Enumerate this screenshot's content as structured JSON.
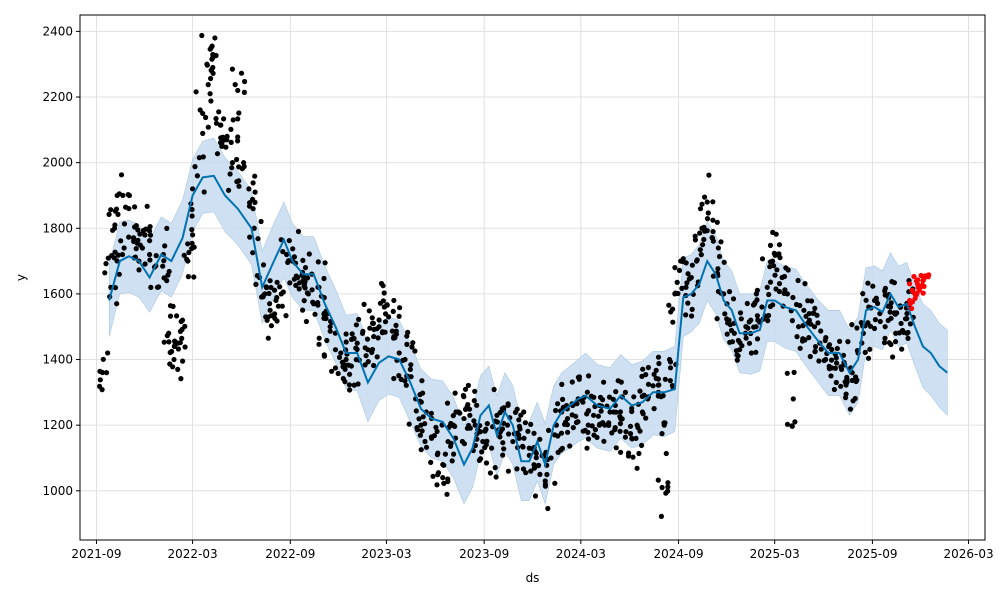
{
  "chart_data": {
    "type": "scatter",
    "title": "",
    "xlabel": "ds",
    "ylabel": "y",
    "grid": true,
    "xlim": [
      "2021-08-01",
      "2026-04-01"
    ],
    "ylim": [
      850,
      2450
    ],
    "x_ticks": [
      "2021-09",
      "2022-03",
      "2022-09",
      "2023-03",
      "2023-09",
      "2024-03",
      "2024-09",
      "2025-03",
      "2025-09",
      "2026-03"
    ],
    "y_ticks": [
      1000,
      1200,
      1400,
      1600,
      1800,
      2000,
      2200,
      2400
    ],
    "colors": {
      "observed": "#000000",
      "recent": "#ff0000",
      "forecast": "#0072b2",
      "uncertainty": "#c6dbef",
      "grid": "#e0e0e0"
    },
    "series": [
      {
        "role": "forecast",
        "x": [
          "2021-09-25",
          "2021-10-15",
          "2021-11-01",
          "2021-11-20",
          "2021-12-10",
          "2022-01-01",
          "2022-01-20",
          "2022-02-10",
          "2022-03-01",
          "2022-03-20",
          "2022-04-10",
          "2022-05-01",
          "2022-05-25",
          "2022-06-20",
          "2022-07-10",
          "2022-08-01",
          "2022-08-20",
          "2022-09-05",
          "2022-09-25",
          "2022-10-15",
          "2022-11-05",
          "2022-11-25",
          "2022-12-15",
          "2023-01-05",
          "2023-01-25",
          "2023-02-15",
          "2023-03-05",
          "2023-03-25",
          "2023-04-15",
          "2023-05-05",
          "2023-05-25",
          "2023-06-15",
          "2023-07-05",
          "2023-07-25",
          "2023-08-10",
          "2023-08-25",
          "2023-09-10",
          "2023-09-25",
          "2023-10-10",
          "2023-10-25",
          "2023-11-10",
          "2023-11-25",
          "2023-12-10",
          "2023-12-25",
          "2024-01-10",
          "2024-01-25",
          "2024-02-10",
          "2024-02-25",
          "2024-03-10",
          "2024-04-01",
          "2024-04-25",
          "2024-05-15",
          "2024-06-05",
          "2024-06-25",
          "2024-07-15",
          "2024-08-05",
          "2024-08-25",
          "2024-09-10",
          "2024-09-25",
          "2024-10-10",
          "2024-10-25",
          "2024-11-10",
          "2024-11-25",
          "2024-12-10",
          "2024-12-25",
          "2025-01-15",
          "2025-02-01",
          "2025-02-15",
          "2025-03-01",
          "2025-03-20",
          "2025-04-10",
          "2025-05-01",
          "2025-05-20",
          "2025-06-10",
          "2025-07-01",
          "2025-07-20",
          "2025-08-05",
          "2025-08-20",
          "2025-09-05",
          "2025-09-20",
          "2025-10-05",
          "2025-10-20",
          "2025-11-05",
          "2025-11-20",
          "2025-12-05",
          "2025-12-20",
          "2026-01-05",
          "2026-01-20"
        ],
        "y": [
          1580,
          1700,
          1715,
          1700,
          1650,
          1720,
          1700,
          1770,
          1900,
          1955,
          1960,
          1900,
          1860,
          1800,
          1620,
          1700,
          1765,
          1700,
          1660,
          1660,
          1570,
          1500,
          1420,
          1420,
          1330,
          1390,
          1410,
          1400,
          1330,
          1250,
          1220,
          1210,
          1160,
          1080,
          1130,
          1230,
          1260,
          1170,
          1240,
          1200,
          1090,
          1090,
          1150,
          1080,
          1200,
          1240,
          1260,
          1280,
          1290,
          1260,
          1250,
          1290,
          1260,
          1270,
          1300,
          1300,
          1310,
          1590,
          1600,
          1630,
          1700,
          1660,
          1580,
          1550,
          1480,
          1480,
          1490,
          1580,
          1580,
          1560,
          1550,
          1500,
          1460,
          1420,
          1420,
          1360,
          1400,
          1550,
          1560,
          1545,
          1600,
          1560,
          1570,
          1500,
          1440,
          1420,
          1380,
          1360
        ],
        "lower": [
          1470,
          1600,
          1605,
          1590,
          1545,
          1610,
          1590,
          1660,
          1790,
          1845,
          1850,
          1790,
          1750,
          1690,
          1510,
          1590,
          1650,
          1590,
          1550,
          1550,
          1460,
          1390,
          1310,
          1305,
          1210,
          1275,
          1295,
          1285,
          1210,
          1135,
          1100,
          1090,
          1040,
          960,
          1010,
          1110,
          1140,
          1045,
          1120,
          1080,
          970,
          970,
          1030,
          960,
          1080,
          1115,
          1130,
          1150,
          1160,
          1130,
          1120,
          1160,
          1130,
          1140,
          1170,
          1165,
          1180,
          1470,
          1485,
          1510,
          1580,
          1540,
          1460,
          1430,
          1360,
          1355,
          1365,
          1455,
          1455,
          1435,
          1425,
          1375,
          1335,
          1290,
          1290,
          1230,
          1270,
          1425,
          1440,
          1430,
          1490,
          1440,
          1450,
          1380,
          1315,
          1290,
          1255,
          1230
        ],
        "upper": [
          1690,
          1820,
          1825,
          1810,
          1765,
          1835,
          1815,
          1885,
          2010,
          2065,
          2075,
          2015,
          1975,
          1915,
          1730,
          1815,
          1880,
          1815,
          1775,
          1775,
          1685,
          1615,
          1535,
          1540,
          1450,
          1510,
          1530,
          1520,
          1450,
          1370,
          1340,
          1335,
          1285,
          1200,
          1250,
          1350,
          1380,
          1290,
          1360,
          1320,
          1210,
          1210,
          1270,
          1205,
          1320,
          1360,
          1380,
          1400,
          1420,
          1385,
          1375,
          1415,
          1385,
          1395,
          1425,
          1425,
          1440,
          1710,
          1720,
          1750,
          1820,
          1780,
          1700,
          1670,
          1600,
          1600,
          1610,
          1700,
          1700,
          1685,
          1675,
          1625,
          1585,
          1550,
          1550,
          1490,
          1530,
          1680,
          1685,
          1670,
          1725,
          1685,
          1695,
          1625,
          1570,
          1550,
          1510,
          1490
        ]
      },
      {
        "role": "observed",
        "x": [
          "2021-09-20",
          "2021-09-28",
          "2021-10-05",
          "2021-10-10",
          "2021-10-20",
          "2021-11-01",
          "2021-11-10",
          "2021-11-20",
          "2021-12-01",
          "2021-12-10",
          "2021-12-25",
          "2022-01-05",
          "2022-01-15",
          "2022-01-25",
          "2022-02-01",
          "2022-02-10",
          "2022-02-20",
          "2022-03-01",
          "2022-03-10",
          "2022-03-20",
          "2022-03-28",
          "2022-04-05",
          "2022-04-15",
          "2022-04-25",
          "2022-05-05",
          "2022-05-15",
          "2022-05-25",
          "2022-06-05",
          "2022-06-15",
          "2022-06-25",
          "2022-07-05",
          "2022-07-15",
          "2022-07-25",
          "2022-08-05",
          "2022-08-15",
          "2022-08-25",
          "2022-09-05",
          "2022-09-15",
          "2022-09-25",
          "2022-10-05",
          "2022-10-15",
          "2022-10-25",
          "2022-11-05",
          "2022-11-15",
          "2022-11-25",
          "2022-12-05",
          "2022-12-15",
          "2022-12-25",
          "2023-01-05",
          "2023-01-15",
          "2023-01-25",
          "2023-02-05",
          "2023-02-15",
          "2023-02-25",
          "2023-03-05",
          "2023-03-15",
          "2023-03-25",
          "2023-04-05",
          "2023-04-15",
          "2023-04-25",
          "2023-05-05",
          "2023-05-15",
          "2023-05-25",
          "2023-06-05",
          "2023-06-15",
          "2023-06-25",
          "2023-07-05",
          "2023-07-15",
          "2023-07-25",
          "2023-08-05",
          "2023-08-15",
          "2023-08-25",
          "2023-09-05",
          "2023-09-15",
          "2023-09-25",
          "2023-10-05",
          "2023-10-15",
          "2023-10-25",
          "2023-11-05",
          "2023-11-15",
          "2023-11-25",
          "2023-12-05",
          "2023-12-15",
          "2023-12-25",
          "2024-01-05",
          "2024-01-15",
          "2024-01-25",
          "2024-02-05",
          "2024-02-15",
          "2024-02-25",
          "2024-03-05",
          "2024-03-15",
          "2024-03-25",
          "2024-04-05",
          "2024-04-15",
          "2024-04-25",
          "2024-05-05",
          "2024-05-15",
          "2024-05-25",
          "2024-06-05",
          "2024-06-15",
          "2024-06-25",
          "2024-07-05",
          "2024-07-15",
          "2024-07-25",
          "2024-08-01",
          "2024-08-05",
          "2024-08-15",
          "2024-08-25",
          "2024-09-05",
          "2024-09-15",
          "2024-09-25",
          "2024-10-05",
          "2024-10-15",
          "2024-10-25",
          "2024-11-05",
          "2024-11-15",
          "2024-11-25",
          "2024-12-05",
          "2024-12-15",
          "2024-12-25",
          "2025-01-05",
          "2025-01-15",
          "2025-01-25",
          "2025-02-05",
          "2025-02-15",
          "2025-02-25",
          "2025-03-05",
          "2025-03-15",
          "2025-03-25",
          "2025-04-05",
          "2025-04-15",
          "2025-04-25",
          "2025-05-05",
          "2025-05-15",
          "2025-05-25",
          "2025-06-05",
          "2025-06-15",
          "2025-06-25",
          "2025-07-05",
          "2025-07-15",
          "2025-07-25",
          "2025-08-05",
          "2025-08-15",
          "2025-08-25",
          "2025-09-05",
          "2025-09-15",
          "2025-09-25",
          "2025-10-05",
          "2025-10-15",
          "2025-10-25",
          "2025-11-05",
          "2025-11-10"
        ],
        "y": [
          1360,
          1620,
          1800,
          1900,
          1720,
          1860,
          1760,
          1700,
          1780,
          1720,
          1620,
          1720,
          1480,
          1400,
          1450,
          1520,
          1700,
          1780,
          1960,
          2150,
          2300,
          2350,
          2120,
          2050,
          2080,
          2000,
          2220,
          2000,
          1920,
          1800,
          1650,
          1600,
          1550,
          1580,
          1600,
          1720,
          1700,
          1650,
          1640,
          1600,
          1570,
          1620,
          1530,
          1500,
          1430,
          1420,
          1400,
          1380,
          1450,
          1480,
          1430,
          1470,
          1500,
          1560,
          1530,
          1470,
          1420,
          1400,
          1370,
          1280,
          1200,
          1240,
          1160,
          1110,
          1080,
          1150,
          1200,
          1240,
          1220,
          1230,
          1200,
          1180,
          1140,
          1130,
          1230,
          1250,
          1200,
          1150,
          1170,
          1160,
          1130,
          1120,
          1050,
          1030,
          1100,
          1200,
          1240,
          1220,
          1260,
          1280,
          1270,
          1200,
          1230,
          1260,
          1200,
          1240,
          1260,
          1220,
          1180,
          1160,
          1200,
          1240,
          1280,
          1320,
          1300,
          1010,
          1200,
          1400,
          1600,
          1700,
          1620,
          1650,
          1700,
          1800,
          1880,
          1790,
          1740,
          1600,
          1520,
          1480,
          1430,
          1480,
          1520,
          1500,
          1560,
          1620,
          1700,
          1720,
          1650,
          1600,
          1280,
          1500,
          1550,
          1540,
          1500,
          1450,
          1400,
          1350,
          1330,
          1370,
          1340,
          1360,
          1420,
          1480,
          1560,
          1580,
          1540,
          1500,
          1560,
          1480,
          1510,
          1540,
          1560
        ],
        "extremes": [
          {
            "x": "2022-04-12",
            "y": 2380
          },
          {
            "x": "2022-04-08",
            "y": 2290
          },
          {
            "x": "2022-05-15",
            "y": 2285
          },
          {
            "x": "2021-10-14",
            "y": 1905
          },
          {
            "x": "2021-09-22",
            "y": 1420
          },
          {
            "x": "2022-02-01",
            "y": 1370
          },
          {
            "x": "2024-10-20",
            "y": 1895
          },
          {
            "x": "2025-03-10",
            "y": 1750
          },
          {
            "x": "2023-03-15",
            "y": 1580
          },
          {
            "x": "2023-06-15",
            "y": 1040
          }
        ]
      },
      {
        "role": "recent",
        "x": [
          "2025-11-10",
          "2025-11-15",
          "2025-11-20",
          "2025-11-25",
          "2025-11-30",
          "2025-12-05",
          "2025-12-10"
        ],
        "y": [
          1580,
          1610,
          1600,
          1630,
          1620,
          1640,
          1655
        ]
      }
    ]
  }
}
